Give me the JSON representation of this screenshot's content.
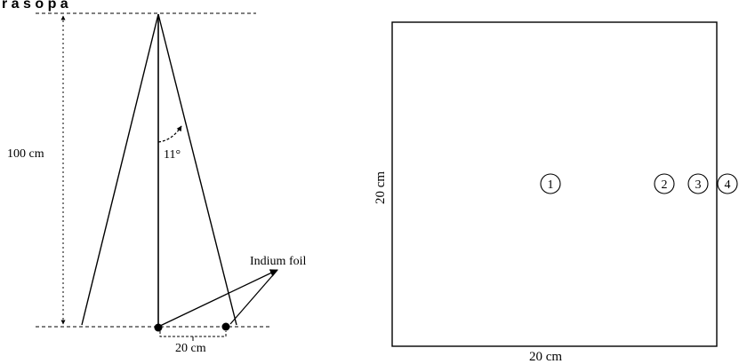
{
  "header_fragment": "r a  s  o p a",
  "left_figure": {
    "height_label": "100 cm",
    "angle_label": "11°",
    "foil_label": "Indium foil",
    "distance_label": "20 cm"
  },
  "right_figure": {
    "side_label": "20 cm",
    "bottom_label": "20 cm",
    "positions": [
      "1",
      "2",
      "3",
      "4"
    ]
  }
}
